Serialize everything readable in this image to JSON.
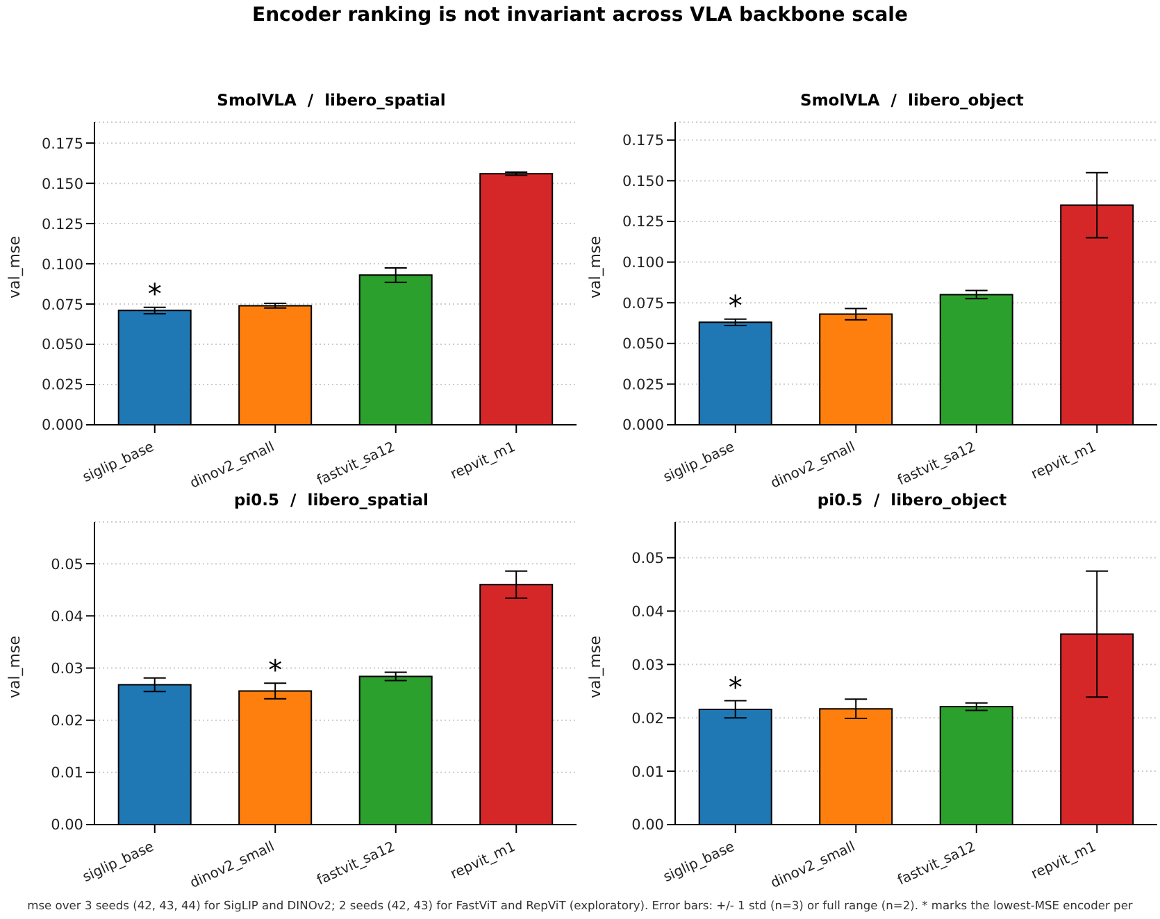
{
  "chart_data": [
    {
      "type": "bar",
      "title": "SmolVLA  /  libero_spatial",
      "ylabel": "val_mse",
      "categories": [
        "siglip_base",
        "dinov2_small",
        "fastvit_sa12",
        "repvit_m1"
      ],
      "values": [
        0.071,
        0.074,
        0.093,
        0.156
      ],
      "errors": [
        0.002,
        0.0015,
        0.0045,
        0.001
      ],
      "colors": [
        "#1f77b4",
        "#ff7f0e",
        "#2ca02c",
        "#d62728"
      ],
      "ylim": [
        0,
        0.188
      ],
      "yticks": [
        {
          "value": 0,
          "label": "0.000"
        },
        {
          "value": 0.025,
          "label": "0.025"
        },
        {
          "value": 0.05,
          "label": "0.050"
        },
        {
          "value": 0.075,
          "label": "0.075"
        },
        {
          "value": 0.1,
          "label": "0.100"
        },
        {
          "value": 0.125,
          "label": "0.125"
        },
        {
          "value": 0.15,
          "label": "0.150"
        },
        {
          "value": 0.175,
          "label": "0.175"
        }
      ],
      "grid": "y",
      "annotations": [
        "Encoder ranking is not invariant across VLA backbone scale",
        "*"
      ]
    },
    {
      "type": "bar",
      "title": "SmolVLA  /  libero_object",
      "ylabel": "val_mse",
      "categories": [
        "siglip_base",
        "dinov2_small",
        "fastvit_sa12",
        "repvit_m1"
      ],
      "values": [
        0.063,
        0.068,
        0.08,
        0.135
      ],
      "errors": [
        0.002,
        0.0035,
        0.0025,
        0.02
      ],
      "colors": [
        "#1f77b4",
        "#ff7f0e",
        "#2ca02c",
        "#d62728"
      ],
      "ylim": [
        0,
        0.186
      ],
      "yticks": [
        {
          "value": 0,
          "label": "0.000"
        },
        {
          "value": 0.025,
          "label": "0.025"
        },
        {
          "value": 0.05,
          "label": "0.050"
        },
        {
          "value": 0.075,
          "label": "0.075"
        },
        {
          "value": 0.1,
          "label": "0.100"
        },
        {
          "value": 0.125,
          "label": "0.125"
        },
        {
          "value": 0.15,
          "label": "0.150"
        },
        {
          "value": 0.175,
          "label": "0.175"
        }
      ],
      "grid": "y",
      "annotations": [
        "*"
      ]
    },
    {
      "type": "bar",
      "title": "pi0.5  /  libero_spatial",
      "ylabel": "val_mse",
      "categories": [
        "siglip_base",
        "dinov2_small",
        "fastvit_sa12",
        "repvit_m1"
      ],
      "values": [
        0.0268,
        0.0256,
        0.0284,
        0.046
      ],
      "errors": [
        0.0013,
        0.0015,
        0.0008,
        0.0026
      ],
      "colors": [
        "#1f77b4",
        "#ff7f0e",
        "#2ca02c",
        "#d62728"
      ],
      "ylim": [
        0,
        0.058
      ],
      "yticks": [
        {
          "value": 0,
          "label": "0.00"
        },
        0.01,
        0.02,
        0.03,
        0.04,
        0.05
      ],
      "grid": "y",
      "annotations": [
        "*"
      ]
    },
    {
      "type": "bar",
      "title": "pi0.5  /  libero_object",
      "ylabel": "val_mse",
      "categories": [
        "siglip_base",
        "dinov2_small",
        "fastvit_sa12",
        "repvit_m1"
      ],
      "values": [
        0.0216,
        0.0217,
        0.0221,
        0.0357
      ],
      "errors": [
        0.0016,
        0.0018,
        0.0007,
        0.0118
      ],
      "colors": [
        "#1f77b4",
        "#ff7f0e",
        "#2ca02c",
        "#d62728"
      ],
      "ylim": [
        0,
        0.0567
      ],
      "yticks": [
        {
          "value": 0,
          "label": "0.00"
        },
        0.01,
        0.02,
        0.03,
        0.04,
        0.05
      ],
      "grid": "y",
      "annotations": [
        "*",
        "mse over 3 seeds (42, 43, 44) for SigLIP and DINOv2; 2 seeds (42, 43) for FastViT and RepViT (exploratory). Error bars: +/- 1 std (n=3) or full range (n=2). * marks the lowest-MSE encoder per"
      ]
    }
  ]
}
